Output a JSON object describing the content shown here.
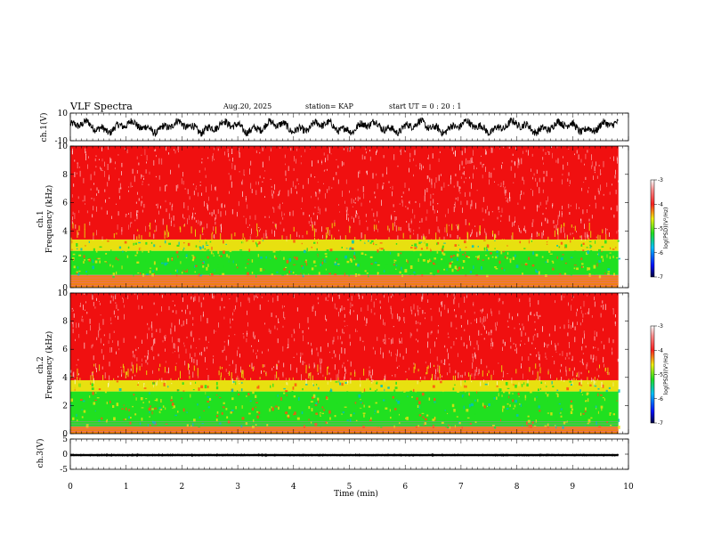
{
  "header": {
    "title": "VLF Spectra",
    "date": "Aug.20, 2025",
    "station": "station= KAP",
    "start": "start  UT =   0  : 20 : 1"
  },
  "chart_data": [
    {
      "type": "line",
      "panel": "ch1-waveform",
      "ylabel": "ch.1(V)",
      "ylim": [
        -10,
        10
      ],
      "yticks": [
        "10",
        "-10"
      ],
      "xlim": [
        0,
        9.82
      ],
      "description_values": {
        "mean": 0,
        "amplitude": 6
      }
    },
    {
      "type": "heatmap",
      "panel": "ch1-spectrogram",
      "ylabel_line1": "ch.1",
      "ylabel_line2": "Frequency  (kHz)",
      "ylim": [
        0,
        10
      ],
      "yticks": [
        "0",
        "2",
        "4",
        "6",
        "8",
        "10"
      ],
      "xlim": [
        0,
        9.82
      ],
      "colorbar": {
        "label": "log(PSD)(V²/Hz)",
        "range": [
          -7,
          -3
        ],
        "ticks": [
          "-3",
          "-4",
          "-5",
          "-6",
          "-7"
        ]
      },
      "bands_khz": [
        {
          "from": 0,
          "to": 0.9,
          "level": -4.2
        },
        {
          "from": 0.9,
          "to": 2.6,
          "level": -5.0
        },
        {
          "from": 2.6,
          "to": 3.4,
          "level": -4.6
        },
        {
          "from": 3.4,
          "to": 10,
          "level": -3.6
        }
      ]
    },
    {
      "type": "heatmap",
      "panel": "ch2-spectrogram",
      "ylabel_line1": "ch.2",
      "ylabel_line2": "Frequency  (kHz)",
      "ylim": [
        0,
        10
      ],
      "yticks": [
        "0",
        "2",
        "4",
        "6",
        "8",
        "10"
      ],
      "xlim": [
        0,
        9.82
      ],
      "colorbar": {
        "label": "log(PSD)(V²/Hz)",
        "range": [
          -7,
          -3
        ],
        "ticks": [
          "-3",
          "-4",
          "-5",
          "-6",
          "-7"
        ]
      },
      "bands_khz": [
        {
          "from": 0,
          "to": 0.5,
          "level": -4.2
        },
        {
          "from": 0.5,
          "to": 3.0,
          "level": -5.1
        },
        {
          "from": 3.0,
          "to": 3.8,
          "level": -4.5
        },
        {
          "from": 3.8,
          "to": 10,
          "level": -3.6
        }
      ]
    },
    {
      "type": "line",
      "panel": "ch3-waveform",
      "ylabel": "ch.3(V)",
      "ylim": [
        -5,
        5
      ],
      "yticks": [
        "5",
        "0",
        "-5"
      ],
      "xlim": [
        0,
        9.82
      ],
      "description_values": {
        "mean": -0.3,
        "amplitude": 0.4
      }
    }
  ],
  "xaxis": {
    "label": "Time  (min)",
    "ticks": [
      "0",
      "1",
      "2",
      "3",
      "4",
      "5",
      "6",
      "7",
      "8",
      "9",
      "10"
    ],
    "range": [
      0,
      10
    ]
  },
  "colors": {
    "red": "#f01010",
    "yellow": "#e8e010",
    "green": "#20e020",
    "blue": "#0030ff",
    "navy": "#000040"
  }
}
